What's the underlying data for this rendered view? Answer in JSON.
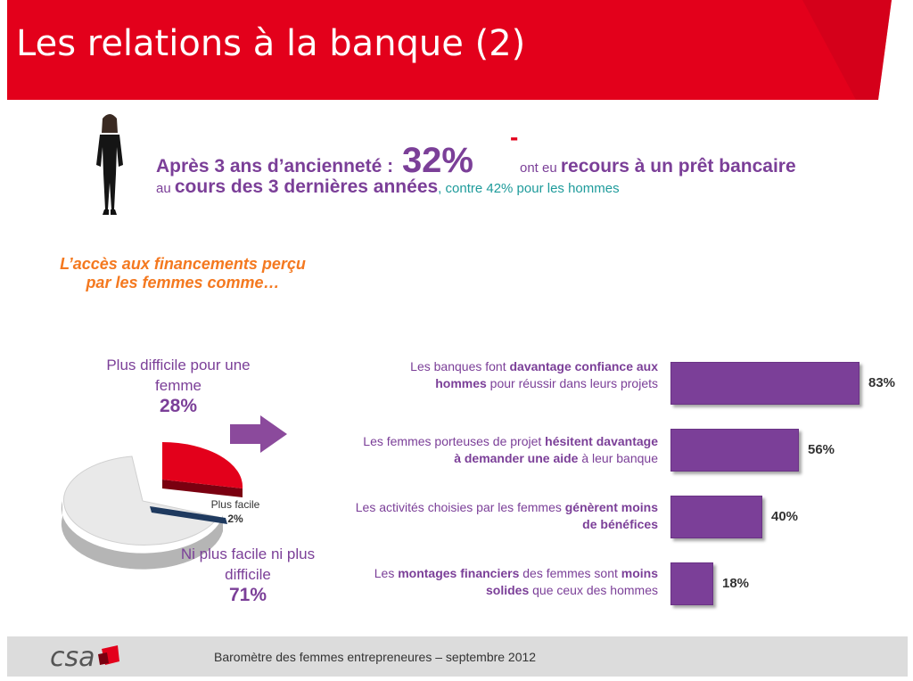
{
  "title": "Les relations à la banque (2)",
  "headline": {
    "part1": "Après 3 ans d’ancienneté : ",
    "big_value": "32%",
    "dash": "-",
    "part2": "ont eu ",
    "part3": "recours à un prêt bancaire",
    "part4": "au ",
    "part5": "cours des 3 dernières années",
    "part6": ", contre 42% pour les hommes"
  },
  "access_title": {
    "line1": "L’accès aux financements perçu",
    "line2": "par les femmes comme…"
  },
  "pie": {
    "hard_label_line1": "Plus difficile pour une",
    "hard_label_line2": "femme",
    "hard_value": "28%",
    "easy_label": "Plus facile",
    "easy_value": "2%",
    "neither_label_line1": "Ni plus facile ni plus",
    "neither_label_line2": "difficile",
    "neither_value": "71%"
  },
  "bars": [
    {
      "plain1": "Les banques font ",
      "bold1": "davantage confiance aux",
      "bold2": "hommes",
      "plain2": " pour réussir dans leurs projets",
      "value_label": "83%"
    },
    {
      "plain1": "Les femmes porteuses de projet ",
      "bold1": "hésitent davantage",
      "bold2": "à demander une aide",
      "plain2": " à leur banque",
      "value_label": "56%"
    },
    {
      "plain1": "Les activités choisies par les femmes ",
      "bold1": "génèrent moins",
      "bold2": "de bénéfices",
      "plain2": "",
      "value_label": "40%"
    },
    {
      "plain1": "Les ",
      "bold1": "montages financiers",
      "plain1b": " des femmes sont ",
      "bold1b": "moins",
      "bold2": "solides",
      "plain2": " que ceux des hommes",
      "value_label": "18%"
    }
  ],
  "footer": {
    "logo": "csa",
    "text": "Baromètre des femmes entrepreneures –  septembre 2012"
  },
  "colors": {
    "title_bar": "#E3001B",
    "purple": "#7B3F98",
    "orange": "#F47920",
    "teal": "#1E9B9B",
    "pie_hard": "#E3001B",
    "pie_easy": "#1F3A5F",
    "pie_neither": "#E6E6E6"
  },
  "chart_data": [
    {
      "type": "pie",
      "categories": [
        "Plus difficile pour une femme",
        "Plus facile",
        "Ni plus facile ni plus difficile"
      ],
      "values": [
        28,
        2,
        71
      ]
    },
    {
      "type": "bar",
      "categories": [
        "Les banques font davantage confiance aux hommes pour réussir dans leurs projets",
        "Les femmes porteuses de projet hésitent davantage à demander une aide à leur banque",
        "Les activités choisies par les femmes génèrent moins de bénéfices",
        "Les montages financiers des femmes sont moins solides que ceux des hommes"
      ],
      "values": [
        83,
        56,
        40,
        18
      ]
    }
  ]
}
